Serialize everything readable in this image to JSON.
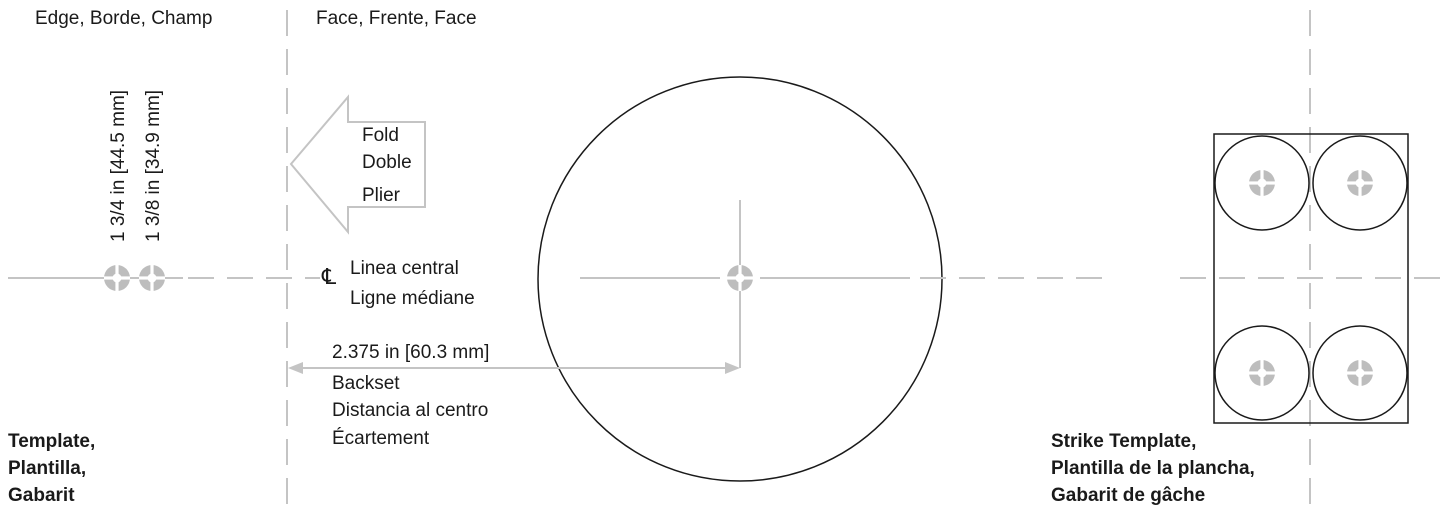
{
  "labels": {
    "edge": "Edge, Borde, Champ",
    "face": "Face, Frente, Face",
    "dim_44": "1 3/4 in [44.5 mm]",
    "dim_34": "1 3/8 in [34.9 mm]",
    "fold": [
      "Fold",
      "Doble",
      "Plier"
    ],
    "centerline_symbol": "℄",
    "centerline": [
      "Linea central",
      "Ligne médiane"
    ],
    "backset": [
      "2.375 in [60.3 mm]",
      "Backset",
      "Distancia al centro",
      "Écartement"
    ],
    "template": [
      "Template,",
      "Plantilla,",
      "Gabarit"
    ],
    "strike_template": [
      "Strike Template,",
      "Plantilla de la plancha,",
      "Gabarit de gâche"
    ]
  },
  "colors": {
    "guide": "#c4c4c4",
    "outline": "#1a1a1a",
    "marker": "#bdbdbd"
  }
}
